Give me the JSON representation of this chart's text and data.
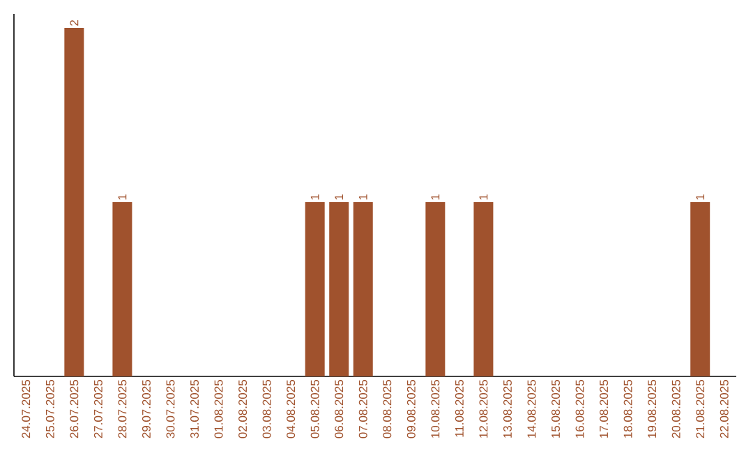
{
  "chart_data": {
    "type": "bar",
    "categories": [
      "24.07.2025",
      "25.07.2025",
      "26.07.2025",
      "27.07.2025",
      "28.07.2025",
      "29.07.2025",
      "30.07.2025",
      "31.07.2025",
      "01.08.2025",
      "02.08.2025",
      "03.08.2025",
      "04.08.2025",
      "05.08.2025",
      "06.08.2025",
      "07.08.2025",
      "08.08.2025",
      "09.08.2025",
      "10.08.2025",
      "11.08.2025",
      "12.08.2025",
      "13.08.2025",
      "14.08.2025",
      "15.08.2025",
      "16.08.2025",
      "17.08.2025",
      "18.08.2025",
      "19.08.2025",
      "20.08.2025",
      "21.08.2025",
      "22.08.2025"
    ],
    "values": [
      0,
      0,
      2,
      0,
      1,
      0,
      0,
      0,
      0,
      0,
      0,
      0,
      1,
      1,
      1,
      0,
      0,
      1,
      0,
      1,
      0,
      0,
      0,
      0,
      0,
      0,
      0,
      0,
      1,
      0
    ],
    "value_labels": [
      null,
      null,
      "2",
      null,
      "1",
      null,
      null,
      null,
      null,
      null,
      null,
      null,
      "1",
      "1",
      "1",
      null,
      null,
      "1",
      null,
      "1",
      null,
      null,
      null,
      null,
      null,
      null,
      null,
      null,
      "1",
      null
    ],
    "color": "#a0522d",
    "tick_labels": "x",
    "grid": false
  }
}
